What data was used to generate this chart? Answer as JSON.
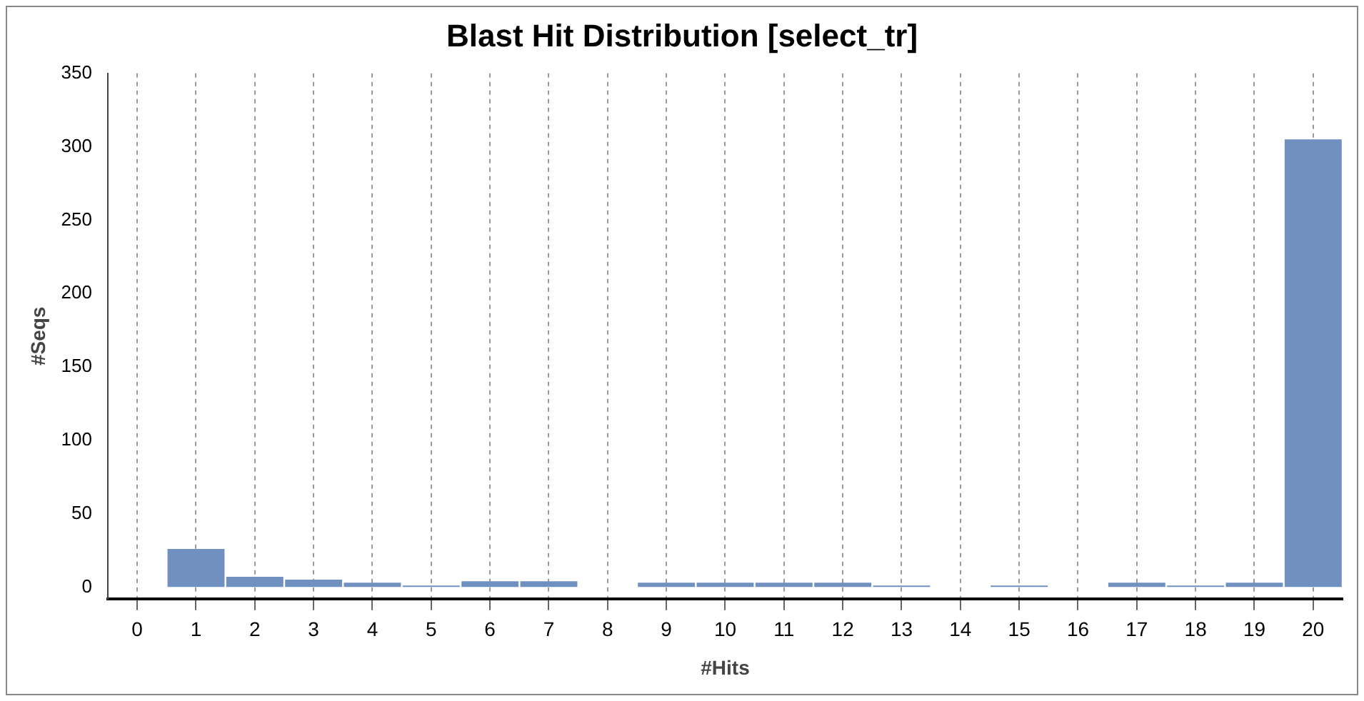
{
  "chart_data": {
    "type": "bar",
    "title": "Blast Hit Distribution [select_tr]",
    "xlabel": "#Hits",
    "ylabel": "#Seqs",
    "x": [
      0,
      1,
      2,
      3,
      4,
      5,
      6,
      7,
      8,
      9,
      10,
      11,
      12,
      13,
      14,
      15,
      16,
      17,
      18,
      19,
      20
    ],
    "values": [
      0,
      26,
      7,
      5,
      3,
      1,
      4,
      4,
      0,
      3,
      3,
      3,
      3,
      1,
      0,
      1,
      0,
      3,
      1,
      3,
      305
    ],
    "color": "#7090c0",
    "xlim": [
      -0.5,
      20.5
    ],
    "xticks": [
      0,
      1,
      2,
      3,
      4,
      5,
      6,
      7,
      8,
      9,
      10,
      11,
      12,
      13,
      14,
      15,
      16,
      17,
      18,
      19,
      20
    ],
    "ylim": [
      -8,
      350
    ],
    "yticks": [
      0,
      50,
      100,
      150,
      200,
      250,
      300,
      350
    ],
    "grid": "x",
    "legend": false
  }
}
